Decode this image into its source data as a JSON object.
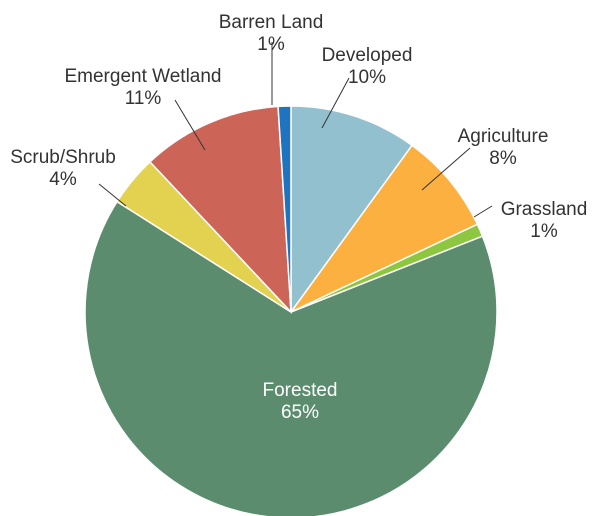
{
  "chart_data": {
    "type": "pie",
    "title": "",
    "slices": [
      {
        "label": "Developed",
        "value": 10,
        "value_label": "10%",
        "color": "#92c0cf"
      },
      {
        "label": "Agriculture",
        "value": 8,
        "value_label": "8%",
        "color": "#fbb040"
      },
      {
        "label": "Grassland",
        "value": 1,
        "value_label": "1%",
        "color": "#8dc63f"
      },
      {
        "label": "Forested",
        "value": 65,
        "value_label": "65%",
        "color": "#5b8c6e"
      },
      {
        "label": "Scrub/Shrub",
        "value": 4,
        "value_label": "4%",
        "color": "#e2d24f"
      },
      {
        "label": "Emergent Wetland",
        "value": 11,
        "value_label": "11%",
        "color": "#cd6458"
      },
      {
        "label": "Barren Land",
        "value": 1,
        "value_label": "1%",
        "color": "#1f74c0"
      }
    ],
    "legend": "none"
  }
}
